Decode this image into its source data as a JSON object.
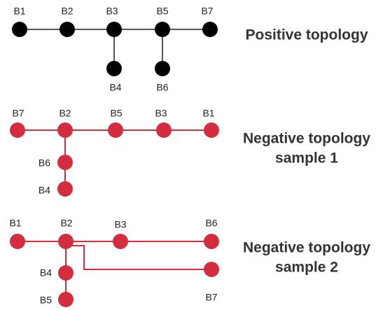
{
  "colors": {
    "positive": "#000000",
    "positive_edge": "#555555",
    "negative": "#d42e3e",
    "text": "#222222",
    "title": "#333333"
  },
  "panels": [
    {
      "title_lines": [
        "Positive topology"
      ],
      "nodes": [
        {
          "id": "B1",
          "label": "B1"
        },
        {
          "id": "B2",
          "label": "B2"
        },
        {
          "id": "B3",
          "label": "B3"
        },
        {
          "id": "B5",
          "label": "B5"
        },
        {
          "id": "B7",
          "label": "B7"
        },
        {
          "id": "B4",
          "label": "B4"
        },
        {
          "id": "B6",
          "label": "B6"
        }
      ],
      "edges": [
        [
          "B1",
          "B2"
        ],
        [
          "B2",
          "B3"
        ],
        [
          "B3",
          "B5"
        ],
        [
          "B5",
          "B7"
        ],
        [
          "B3",
          "B4"
        ],
        [
          "B5",
          "B6"
        ]
      ]
    },
    {
      "title_lines": [
        "Negative topology",
        "sample 1"
      ],
      "nodes": [
        {
          "id": "B7",
          "label": "B7"
        },
        {
          "id": "B2",
          "label": "B2"
        },
        {
          "id": "B5",
          "label": "B5"
        },
        {
          "id": "B3",
          "label": "B3"
        },
        {
          "id": "B1",
          "label": "B1"
        },
        {
          "id": "B6",
          "label": "B6"
        },
        {
          "id": "B4",
          "label": "B4"
        }
      ],
      "edges": [
        [
          "B7",
          "B2"
        ],
        [
          "B2",
          "B5"
        ],
        [
          "B5",
          "B3"
        ],
        [
          "B3",
          "B1"
        ],
        [
          "B2",
          "B6"
        ],
        [
          "B6",
          "B4"
        ]
      ]
    },
    {
      "title_lines": [
        "Negative topology",
        "sample 2"
      ],
      "nodes": [
        {
          "id": "B1",
          "label": "B1"
        },
        {
          "id": "B2",
          "label": "B2"
        },
        {
          "id": "B3",
          "label": "B3"
        },
        {
          "id": "B6",
          "label": "B6"
        },
        {
          "id": "B7",
          "label": "B7"
        },
        {
          "id": "B4",
          "label": "B4"
        },
        {
          "id": "B5",
          "label": "B5"
        }
      ],
      "edges": [
        [
          "B1",
          "B2"
        ],
        [
          "B2",
          "B3"
        ],
        [
          "B3",
          "B6"
        ],
        [
          "B2",
          "B7"
        ],
        [
          "B2",
          "B4"
        ],
        [
          "B4",
          "B5"
        ]
      ]
    }
  ]
}
